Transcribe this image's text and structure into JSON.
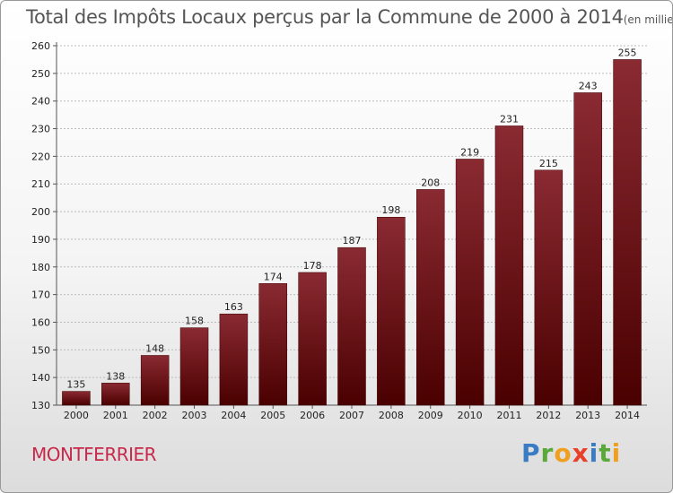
{
  "header": {
    "title": "Total des Impôts Locaux perçus par la Commune de 2000 à 2014",
    "unit": "(en milliers d'€)"
  },
  "commune": "MONTFERRIER",
  "brand": {
    "letters": [
      "P",
      "r",
      "o",
      "x",
      "i",
      "t",
      "i"
    ]
  },
  "colors": {
    "bar_top": "#8a2a32",
    "bar_bottom": "#4a0000",
    "grid": "#bbbbbb"
  },
  "chart_data": {
    "type": "bar",
    "title": "Total des Impôts Locaux perçus par la Commune de 2000 à 2014",
    "xlabel": "",
    "ylabel": "",
    "categories": [
      "2000",
      "2001",
      "2002",
      "2003",
      "2004",
      "2005",
      "2006",
      "2007",
      "2008",
      "2009",
      "2010",
      "2011",
      "2012",
      "2013",
      "2014"
    ],
    "values": [
      135,
      138,
      148,
      158,
      163,
      174,
      178,
      187,
      198,
      208,
      219,
      231,
      215,
      243,
      255
    ],
    "ylim": [
      130,
      260
    ],
    "yticks": [
      130,
      140,
      150,
      160,
      170,
      180,
      190,
      200,
      210,
      220,
      230,
      240,
      250,
      260
    ],
    "grid": true
  }
}
